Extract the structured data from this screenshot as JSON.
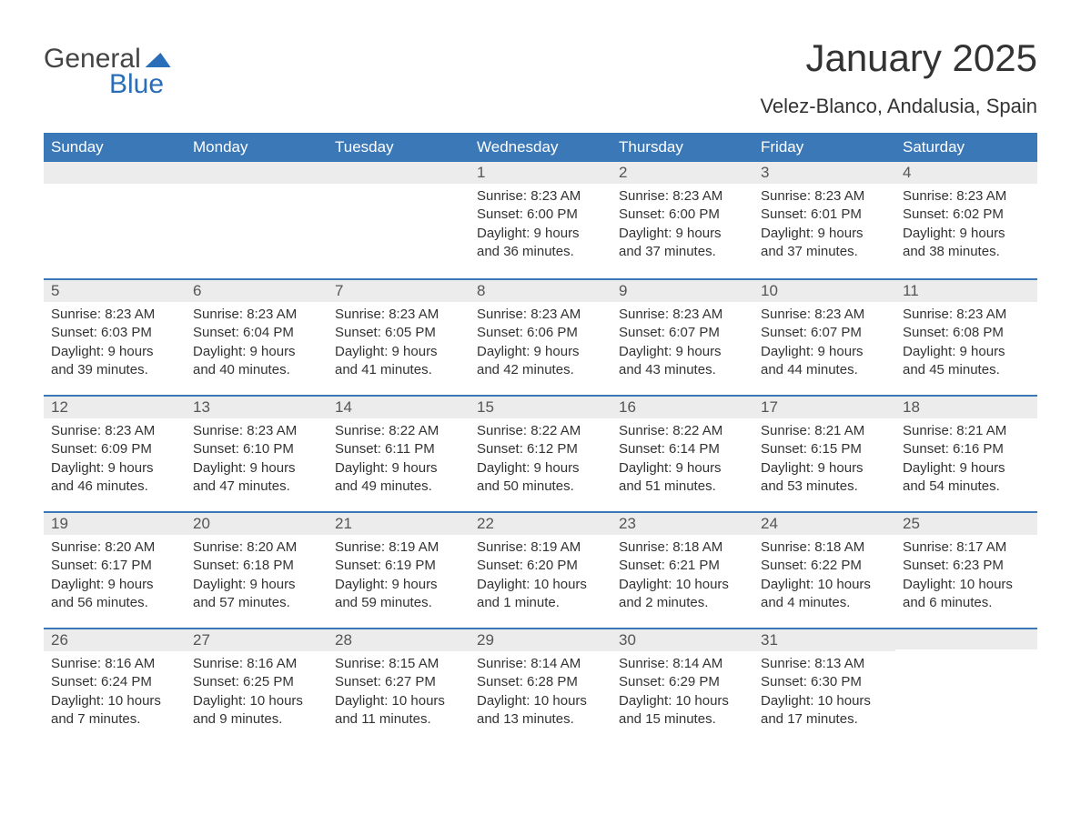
{
  "brand": {
    "word1": "General",
    "word2": "Blue"
  },
  "title": "January 2025",
  "location": "Velez-Blanco, Andalusia, Spain",
  "colors": {
    "header_bg": "#3b78b8",
    "header_text": "#ffffff",
    "daynum_bg": "#ececec",
    "daynum_text": "#555555",
    "body_text": "#333333",
    "rule": "#3b78b8",
    "page_bg": "#ffffff",
    "logo_gray": "#444444",
    "logo_blue": "#2a6db8"
  },
  "fonts": {
    "title_size_pt": 32,
    "location_size_pt": 17,
    "header_size_pt": 13,
    "daynum_size_pt": 13,
    "body_size_pt": 11
  },
  "day_headers": [
    "Sunday",
    "Monday",
    "Tuesday",
    "Wednesday",
    "Thursday",
    "Friday",
    "Saturday"
  ],
  "weeks": [
    [
      null,
      null,
      null,
      {
        "n": "1",
        "sunrise": "Sunrise: 8:23 AM",
        "sunset": "Sunset: 6:00 PM",
        "daylight": "Daylight: 9 hours and 36 minutes."
      },
      {
        "n": "2",
        "sunrise": "Sunrise: 8:23 AM",
        "sunset": "Sunset: 6:00 PM",
        "daylight": "Daylight: 9 hours and 37 minutes."
      },
      {
        "n": "3",
        "sunrise": "Sunrise: 8:23 AM",
        "sunset": "Sunset: 6:01 PM",
        "daylight": "Daylight: 9 hours and 37 minutes."
      },
      {
        "n": "4",
        "sunrise": "Sunrise: 8:23 AM",
        "sunset": "Sunset: 6:02 PM",
        "daylight": "Daylight: 9 hours and 38 minutes."
      }
    ],
    [
      {
        "n": "5",
        "sunrise": "Sunrise: 8:23 AM",
        "sunset": "Sunset: 6:03 PM",
        "daylight": "Daylight: 9 hours and 39 minutes."
      },
      {
        "n": "6",
        "sunrise": "Sunrise: 8:23 AM",
        "sunset": "Sunset: 6:04 PM",
        "daylight": "Daylight: 9 hours and 40 minutes."
      },
      {
        "n": "7",
        "sunrise": "Sunrise: 8:23 AM",
        "sunset": "Sunset: 6:05 PM",
        "daylight": "Daylight: 9 hours and 41 minutes."
      },
      {
        "n": "8",
        "sunrise": "Sunrise: 8:23 AM",
        "sunset": "Sunset: 6:06 PM",
        "daylight": "Daylight: 9 hours and 42 minutes."
      },
      {
        "n": "9",
        "sunrise": "Sunrise: 8:23 AM",
        "sunset": "Sunset: 6:07 PM",
        "daylight": "Daylight: 9 hours and 43 minutes."
      },
      {
        "n": "10",
        "sunrise": "Sunrise: 8:23 AM",
        "sunset": "Sunset: 6:07 PM",
        "daylight": "Daylight: 9 hours and 44 minutes."
      },
      {
        "n": "11",
        "sunrise": "Sunrise: 8:23 AM",
        "sunset": "Sunset: 6:08 PM",
        "daylight": "Daylight: 9 hours and 45 minutes."
      }
    ],
    [
      {
        "n": "12",
        "sunrise": "Sunrise: 8:23 AM",
        "sunset": "Sunset: 6:09 PM",
        "daylight": "Daylight: 9 hours and 46 minutes."
      },
      {
        "n": "13",
        "sunrise": "Sunrise: 8:23 AM",
        "sunset": "Sunset: 6:10 PM",
        "daylight": "Daylight: 9 hours and 47 minutes."
      },
      {
        "n": "14",
        "sunrise": "Sunrise: 8:22 AM",
        "sunset": "Sunset: 6:11 PM",
        "daylight": "Daylight: 9 hours and 49 minutes."
      },
      {
        "n": "15",
        "sunrise": "Sunrise: 8:22 AM",
        "sunset": "Sunset: 6:12 PM",
        "daylight": "Daylight: 9 hours and 50 minutes."
      },
      {
        "n": "16",
        "sunrise": "Sunrise: 8:22 AM",
        "sunset": "Sunset: 6:14 PM",
        "daylight": "Daylight: 9 hours and 51 minutes."
      },
      {
        "n": "17",
        "sunrise": "Sunrise: 8:21 AM",
        "sunset": "Sunset: 6:15 PM",
        "daylight": "Daylight: 9 hours and 53 minutes."
      },
      {
        "n": "18",
        "sunrise": "Sunrise: 8:21 AM",
        "sunset": "Sunset: 6:16 PM",
        "daylight": "Daylight: 9 hours and 54 minutes."
      }
    ],
    [
      {
        "n": "19",
        "sunrise": "Sunrise: 8:20 AM",
        "sunset": "Sunset: 6:17 PM",
        "daylight": "Daylight: 9 hours and 56 minutes."
      },
      {
        "n": "20",
        "sunrise": "Sunrise: 8:20 AM",
        "sunset": "Sunset: 6:18 PM",
        "daylight": "Daylight: 9 hours and 57 minutes."
      },
      {
        "n": "21",
        "sunrise": "Sunrise: 8:19 AM",
        "sunset": "Sunset: 6:19 PM",
        "daylight": "Daylight: 9 hours and 59 minutes."
      },
      {
        "n": "22",
        "sunrise": "Sunrise: 8:19 AM",
        "sunset": "Sunset: 6:20 PM",
        "daylight": "Daylight: 10 hours and 1 minute."
      },
      {
        "n": "23",
        "sunrise": "Sunrise: 8:18 AM",
        "sunset": "Sunset: 6:21 PM",
        "daylight": "Daylight: 10 hours and 2 minutes."
      },
      {
        "n": "24",
        "sunrise": "Sunrise: 8:18 AM",
        "sunset": "Sunset: 6:22 PM",
        "daylight": "Daylight: 10 hours and 4 minutes."
      },
      {
        "n": "25",
        "sunrise": "Sunrise: 8:17 AM",
        "sunset": "Sunset: 6:23 PM",
        "daylight": "Daylight: 10 hours and 6 minutes."
      }
    ],
    [
      {
        "n": "26",
        "sunrise": "Sunrise: 8:16 AM",
        "sunset": "Sunset: 6:24 PM",
        "daylight": "Daylight: 10 hours and 7 minutes."
      },
      {
        "n": "27",
        "sunrise": "Sunrise: 8:16 AM",
        "sunset": "Sunset: 6:25 PM",
        "daylight": "Daylight: 10 hours and 9 minutes."
      },
      {
        "n": "28",
        "sunrise": "Sunrise: 8:15 AM",
        "sunset": "Sunset: 6:27 PM",
        "daylight": "Daylight: 10 hours and 11 minutes."
      },
      {
        "n": "29",
        "sunrise": "Sunrise: 8:14 AM",
        "sunset": "Sunset: 6:28 PM",
        "daylight": "Daylight: 10 hours and 13 minutes."
      },
      {
        "n": "30",
        "sunrise": "Sunrise: 8:14 AM",
        "sunset": "Sunset: 6:29 PM",
        "daylight": "Daylight: 10 hours and 15 minutes."
      },
      {
        "n": "31",
        "sunrise": "Sunrise: 8:13 AM",
        "sunset": "Sunset: 6:30 PM",
        "daylight": "Daylight: 10 hours and 17 minutes."
      },
      null
    ]
  ]
}
